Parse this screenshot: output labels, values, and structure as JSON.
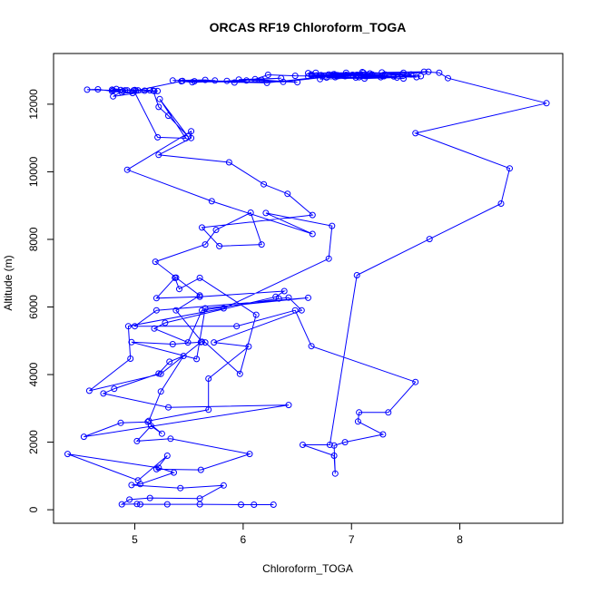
{
  "chart_data": {
    "type": "line",
    "title": "ORCAS RF19 Chloroform_TOGA",
    "xlabel": "Chloroform_TOGA",
    "ylabel": "Altitude (m)",
    "xlim": [
      4.25,
      8.95
    ],
    "ylim": [
      -400,
      13500
    ],
    "xticks": [
      5,
      6,
      7,
      8
    ],
    "yticks": [
      0,
      2000,
      4000,
      6000,
      8000,
      10000,
      12000
    ],
    "grid": false,
    "legend": "none",
    "series": [
      {
        "color": "#0000ff",
        "marker": "open-circle",
        "points": [
          [
            6.28,
            150
          ],
          [
            6.1,
            150
          ],
          [
            5.98,
            150
          ],
          [
            5.6,
            160
          ],
          [
            5.3,
            160
          ],
          [
            5.05,
            160
          ],
          [
            5.02,
            170
          ],
          [
            4.88,
            160
          ],
          [
            4.95,
            300
          ],
          [
            5.14,
            350
          ],
          [
            5.6,
            330
          ],
          [
            5.82,
            720
          ],
          [
            5.42,
            640
          ],
          [
            4.97,
            730
          ],
          [
            5.05,
            760
          ],
          [
            5.36,
            1100
          ],
          [
            5.22,
            1240
          ],
          [
            4.38,
            1650
          ],
          [
            5.03,
            870
          ],
          [
            5.3,
            1600
          ],
          [
            5.2,
            1200
          ],
          [
            5.61,
            1180
          ],
          [
            6.06,
            1650
          ],
          [
            5.33,
            2100
          ],
          [
            5.02,
            2030
          ],
          [
            5.15,
            2480
          ],
          [
            5.25,
            2250
          ],
          [
            5.12,
            2600
          ],
          [
            4.87,
            2570
          ],
          [
            4.53,
            2160
          ],
          [
            6.42,
            3100
          ],
          [
            5.31,
            3030
          ],
          [
            4.71,
            3440
          ],
          [
            4.81,
            3580
          ],
          [
            5.22,
            4030
          ],
          [
            5.32,
            4380
          ],
          [
            5.45,
            4550
          ],
          [
            5.24,
            3500
          ],
          [
            5.13,
            2630
          ],
          [
            5.68,
            2960
          ],
          [
            5.68,
            3880
          ],
          [
            6.05,
            4830
          ],
          [
            5.73,
            4950
          ],
          [
            6.54,
            5900
          ],
          [
            6.42,
            6280
          ],
          [
            6.33,
            6250
          ],
          [
            5.62,
            5900
          ],
          [
            5.49,
            4950
          ],
          [
            5.18,
            5360
          ],
          [
            5.28,
            5530
          ],
          [
            6.3,
            6300
          ],
          [
            6.38,
            6470
          ],
          [
            5.6,
            6300
          ],
          [
            5.2,
            6260
          ],
          [
            5.37,
            6860
          ],
          [
            5.41,
            6530
          ],
          [
            5.6,
            6860
          ],
          [
            6.12,
            5770
          ],
          [
            5.97,
            4020
          ],
          [
            5.65,
            4950
          ],
          [
            5.62,
            4970
          ],
          [
            5.38,
            5900
          ],
          [
            5.6,
            6340
          ],
          [
            5.38,
            6870
          ],
          [
            5.19,
            7340
          ],
          [
            5.65,
            7850
          ],
          [
            5.75,
            8280
          ],
          [
            6.07,
            8790
          ],
          [
            6.17,
            7850
          ],
          [
            5.78,
            7800
          ],
          [
            5.62,
            8350
          ],
          [
            6.64,
            8720
          ],
          [
            6.41,
            9350
          ],
          [
            6.19,
            9630
          ],
          [
            5.87,
            10280
          ],
          [
            5.22,
            10500
          ],
          [
            5.52,
            11000
          ],
          [
            5.52,
            11200
          ],
          [
            4.93,
            10060
          ],
          [
            5.71,
            9130
          ],
          [
            6.64,
            8160
          ],
          [
            6.21,
            8780
          ],
          [
            6.82,
            8400
          ],
          [
            6.79,
            7430
          ],
          [
            5.82,
            5960
          ],
          [
            4.94,
            5430
          ],
          [
            4.96,
            4470
          ],
          [
            4.58,
            3520
          ],
          [
            5.24,
            4020
          ],
          [
            5.61,
            4960
          ],
          [
            5.35,
            4900
          ],
          [
            4.97,
            4960
          ],
          [
            5.57,
            4460
          ],
          [
            5.65,
            5960
          ],
          [
            6.6,
            6270
          ],
          [
            5.2,
            5900
          ],
          [
            5.0,
            5430
          ],
          [
            5.94,
            5430
          ],
          [
            6.48,
            5900
          ],
          [
            6.63,
            4840
          ],
          [
            7.59,
            3780
          ],
          [
            7.34,
            2880
          ],
          [
            7.07,
            2880
          ],
          [
            7.06,
            2610
          ],
          [
            7.29,
            2230
          ],
          [
            6.94,
            2000
          ],
          [
            6.84,
            1900
          ],
          [
            6.85,
            1070
          ],
          [
            6.84,
            1600
          ],
          [
            6.55,
            1920
          ],
          [
            6.8,
            1920
          ],
          [
            7.05,
            6940
          ],
          [
            7.72,
            8010
          ],
          [
            8.38,
            9060
          ],
          [
            8.46,
            10100
          ],
          [
            7.59,
            11140
          ],
          [
            8.8,
            12030
          ],
          [
            7.89,
            12770
          ],
          [
            7.81,
            12930
          ],
          [
            7.67,
            12960
          ],
          [
            7.28,
            12940
          ],
          [
            7.6,
            12800
          ],
          [
            6.67,
            12930
          ],
          [
            6.73,
            12830
          ],
          [
            6.48,
            12840
          ],
          [
            6.23,
            12870
          ],
          [
            6.11,
            12740
          ],
          [
            6.17,
            12720
          ],
          [
            6.5,
            12650
          ],
          [
            5.96,
            12730
          ],
          [
            6.35,
            12770
          ],
          [
            5.85,
            12690
          ],
          [
            5.55,
            12680
          ],
          [
            5.74,
            12700
          ],
          [
            5.35,
            12700
          ],
          [
            5.65,
            12720
          ],
          [
            5.92,
            12640
          ],
          [
            6.03,
            12700
          ],
          [
            5.53,
            12650
          ],
          [
            5.43,
            12680
          ],
          [
            6.37,
            12660
          ],
          [
            6.95,
            12870
          ],
          [
            7.48,
            12760
          ],
          [
            7.55,
            12880
          ],
          [
            7.1,
            12950
          ],
          [
            6.84,
            12890
          ],
          [
            7.48,
            12930
          ],
          [
            7.71,
            12960
          ],
          [
            7.47,
            12880
          ],
          [
            6.63,
            12880
          ],
          [
            6.83,
            12880
          ],
          [
            7.13,
            12840
          ],
          [
            7.17,
            12910
          ],
          [
            7.28,
            12840
          ],
          [
            6.72,
            12860
          ],
          [
            6.6,
            12920
          ],
          [
            6.95,
            12930
          ],
          [
            7.11,
            12930
          ],
          [
            6.79,
            12880
          ],
          [
            7.01,
            12870
          ],
          [
            7.31,
            12880
          ],
          [
            7.64,
            12830
          ],
          [
            6.71,
            12740
          ],
          [
            7.27,
            12800
          ],
          [
            7.39,
            12820
          ],
          [
            7.07,
            12800
          ],
          [
            6.6,
            12820
          ],
          [
            6.85,
            12800
          ],
          [
            7.12,
            12760
          ],
          [
            7.42,
            12790
          ],
          [
            7.3,
            12830
          ],
          [
            7.13,
            12830
          ],
          [
            7.04,
            12790
          ],
          [
            6.77,
            12790
          ],
          [
            6.94,
            12830
          ],
          [
            7.05,
            12870
          ],
          [
            7.19,
            12880
          ],
          [
            7.06,
            12850
          ],
          [
            6.87,
            12830
          ],
          [
            6.63,
            12850
          ],
          [
            6.87,
            12860
          ],
          [
            6.22,
            12630
          ],
          [
            5.44,
            12690
          ],
          [
            5.01,
            12400
          ],
          [
            5.03,
            12410
          ],
          [
            4.91,
            12410
          ],
          [
            4.87,
            12420
          ],
          [
            4.8,
            12410
          ],
          [
            4.56,
            12430
          ],
          [
            4.66,
            12440
          ],
          [
            4.88,
            12350
          ],
          [
            4.79,
            12430
          ],
          [
            5.0,
            12420
          ],
          [
            5.14,
            12410
          ],
          [
            5.09,
            12400
          ],
          [
            5.21,
            12390
          ],
          [
            4.93,
            12410
          ],
          [
            4.83,
            12450
          ],
          [
            4.79,
            12380
          ],
          [
            4.98,
            12330
          ],
          [
            4.89,
            12390
          ],
          [
            4.8,
            12230
          ],
          [
            5.17,
            12400
          ],
          [
            5.22,
            11920
          ],
          [
            5.31,
            11660
          ],
          [
            5.49,
            11050
          ],
          [
            5.23,
            12150
          ],
          [
            5.47,
            10990
          ],
          [
            5.21,
            11020
          ],
          [
            4.99,
            12410
          ],
          [
            5.18,
            12390
          ]
        ]
      }
    ]
  }
}
